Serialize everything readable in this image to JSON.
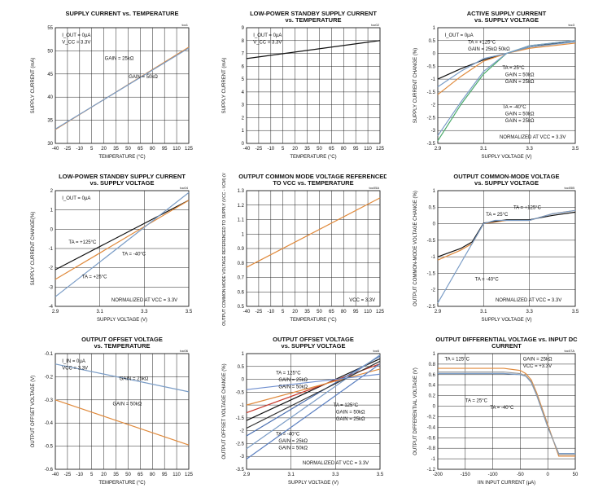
{
  "chart_data": [
    {
      "id": "toc1",
      "type": "line",
      "tag": "toc1",
      "title": [
        "SUPPLY CURRENT vs. TEMPERATURE"
      ],
      "xlabel": "TEMPERATURE (°C)",
      "ylabel": "SUPPLY CURRENT (mA)",
      "xlim": [
        -40,
        125
      ],
      "ylim": [
        30,
        55
      ],
      "xticks": [
        -40,
        -25,
        -10,
        5,
        20,
        35,
        50,
        65,
        80,
        95,
        110,
        125
      ],
      "yticks": [
        30,
        35,
        40,
        45,
        50,
        55
      ],
      "grid": true,
      "notes": [
        "I_OUT = 0µA",
        "V_CC = 3.3V",
        "GAIN = 25kΩ",
        "GAIN = 50kΩ"
      ],
      "series": [
        {
          "color": "#e08a3c",
          "x": [
            -40,
            125
          ],
          "y": [
            33.0,
            50.8
          ]
        },
        {
          "color": "#7a9cc6",
          "x": [
            -40,
            125
          ],
          "y": [
            33.1,
            50.6
          ]
        }
      ]
    },
    {
      "id": "toc2",
      "type": "line",
      "tag": "toc02",
      "title": [
        "LOW-POWER STANDBY SUPPLY CURRENT",
        "vs. TEMPERATURE"
      ],
      "xlabel": "TEMPERATURE (°C)",
      "ylabel": "SUPPLY CURRENT (mA)",
      "xlim": [
        -40,
        125
      ],
      "ylim": [
        0,
        9
      ],
      "xticks": [
        -40,
        -25,
        -10,
        5,
        20,
        35,
        50,
        65,
        80,
        95,
        110,
        125
      ],
      "yticks": [
        0,
        1,
        2,
        3,
        4,
        5,
        6,
        7,
        8,
        9
      ],
      "grid": true,
      "notes": [
        "I_OUT = 0µA",
        "V_CC = 3.3V"
      ],
      "series": [
        {
          "color": "#111111",
          "x": [
            -40,
            125
          ],
          "y": [
            6.6,
            8.0
          ]
        }
      ]
    },
    {
      "id": "toc3",
      "type": "line",
      "tag": "toc3",
      "title": [
        "ACTIVE SUPPLY CURRENT",
        "vs. SUPPLY VOLTAGE"
      ],
      "xlabel": "SUPPLY VOLTAGE (V)",
      "ylabel": "SUPPLY CURRENT CHANGE (%)",
      "xlim": [
        2.9,
        3.5
      ],
      "ylim": [
        -3.5,
        1
      ],
      "xticks": [
        2.9,
        3.1,
        3.3,
        3.5
      ],
      "yticks": [
        -3.5,
        -3,
        -2.5,
        -2,
        -1.5,
        -1,
        -0.5,
        0,
        0.5,
        1
      ],
      "grid": true,
      "notes": [
        "I_OUT = 0µA",
        "TA = +125°C",
        "GAIN = 25kΩ  50kΩ",
        "TA = 25°C",
        "GAIN = 50kΩ",
        "GAIN = 25kΩ",
        "TA = -40°C",
        "GAIN = 50kΩ",
        "GAIN = 25kΩ",
        "NORMALIZED AT VCC = 3.3V"
      ],
      "series": [
        {
          "color": "#111111",
          "x": [
            2.9,
            3.0,
            3.1,
            3.2,
            3.3,
            3.5
          ],
          "y": [
            -1.0,
            -0.6,
            -0.25,
            0.0,
            0.25,
            0.5
          ]
        },
        {
          "color": "#e08a3c",
          "x": [
            2.9,
            3.0,
            3.1,
            3.2,
            3.3,
            3.5
          ],
          "y": [
            -1.6,
            -0.9,
            -0.3,
            0.0,
            0.2,
            0.4
          ]
        },
        {
          "color": "#7a9cc6",
          "x": [
            2.9,
            3.0,
            3.1,
            3.2,
            3.3,
            3.5
          ],
          "y": [
            -1.3,
            -0.7,
            -0.2,
            0.0,
            0.25,
            0.45
          ]
        },
        {
          "color": "#4aaa6a",
          "x": [
            2.9,
            3.0,
            3.1,
            3.2,
            3.3,
            3.5
          ],
          "y": [
            -3.4,
            -2.0,
            -0.8,
            0.0,
            0.3,
            0.5
          ]
        },
        {
          "color": "#7a9cc6",
          "x": [
            2.9,
            3.0,
            3.1,
            3.2,
            3.3,
            3.5
          ],
          "y": [
            -3.2,
            -1.9,
            -0.7,
            0.0,
            0.3,
            0.5
          ]
        }
      ]
    },
    {
      "id": "toc4",
      "type": "line",
      "tag": "toc04",
      "title": [
        "LOW-POWER STANDBY SUPPLY CURRENT",
        "vs. SUPPLY VOLTAGE"
      ],
      "xlabel": "SUPPLY VOLTAGE (V)",
      "ylabel": "SUPPLY CURRENT CHANGE(%)",
      "xlim": [
        2.9,
        3.5
      ],
      "ylim": [
        -4,
        2
      ],
      "xticks": [
        2.9,
        3.1,
        3.3,
        3.5
      ],
      "yticks": [
        -4,
        -3,
        -2,
        -1,
        0,
        1,
        2
      ],
      "grid": true,
      "notes": [
        "I_OUT = 0µA",
        "TA = +125°C",
        "TA = -40°C",
        "TA = +25°C",
        "NORMALIZED AT VCC = 3.3V"
      ],
      "series": [
        {
          "color": "#111111",
          "x": [
            2.9,
            3.5
          ],
          "y": [
            -2.1,
            1.5
          ]
        },
        {
          "color": "#e08a3c",
          "x": [
            2.9,
            3.5
          ],
          "y": [
            -2.6,
            1.5
          ]
        },
        {
          "color": "#7a9cc6",
          "x": [
            2.9,
            3.5
          ],
          "y": [
            -3.5,
            1.9
          ]
        }
      ]
    },
    {
      "id": "toc5",
      "type": "line",
      "tag": "toc05A",
      "title": [
        "OUTPUT COMMON MODE VOLTAGE REFERENCED",
        "TO VCC vs. TEMPERATURE"
      ],
      "xlabel": "TEMPERATURE (°C)",
      "ylabel": "OUTPUT COMMON MODE VOLTAGE REFERENCED TO SUPPLY (VCC - VCM) (V)",
      "xlim": [
        -40,
        125
      ],
      "ylim": [
        0.5,
        1.3
      ],
      "xticks": [
        -40,
        -25,
        -10,
        5,
        20,
        35,
        50,
        65,
        80,
        95,
        110,
        125
      ],
      "yticks": [
        0.5,
        0.6,
        0.7,
        0.8,
        0.9,
        1,
        1.1,
        1.2,
        1.3
      ],
      "grid": true,
      "notes": [
        "VCC = 3.3V"
      ],
      "series": [
        {
          "color": "#e08a3c",
          "x": [
            -40,
            125
          ],
          "y": [
            0.77,
            1.25
          ]
        }
      ]
    },
    {
      "id": "toc6",
      "type": "line",
      "tag": "toc05B",
      "title": [
        "OUTPUT COMMON-MODE VOLTAGE",
        "vs. SUPPLY VOLTAGE"
      ],
      "xlabel": "SUPPLY VOLTAGE (V)",
      "ylabel": "OUTPUT COMMON-MODE VOLTAGE CHANGE (%)",
      "xlim": [
        2.9,
        3.5
      ],
      "ylim": [
        -2.5,
        1
      ],
      "xticks": [
        2.9,
        3.1,
        3.3,
        3.5
      ],
      "yticks": [
        -2.5,
        -2,
        -1.5,
        -1,
        -0.5,
        0,
        0.5,
        1
      ],
      "grid": true,
      "notes": [
        "TA = 25°C",
        "TA = +125°C",
        "TA = -40°C",
        "NORMALIZED AT VCC = 3.3V"
      ],
      "series": [
        {
          "color": "#e08a3c",
          "x": [
            2.9,
            3.0,
            3.05,
            3.1,
            3.2,
            3.3,
            3.4,
            3.5
          ],
          "y": [
            -1.1,
            -0.8,
            -0.6,
            0.0,
            0.1,
            0.1,
            0.3,
            0.4
          ]
        },
        {
          "color": "#111111",
          "x": [
            2.9,
            3.0,
            3.05,
            3.1,
            3.2,
            3.3,
            3.4,
            3.5
          ],
          "y": [
            -1.0,
            -0.75,
            -0.55,
            0.02,
            0.12,
            0.12,
            0.25,
            0.35
          ]
        },
        {
          "color": "#7a9cc6",
          "x": [
            2.9,
            3.0,
            3.1,
            3.15,
            3.2,
            3.3,
            3.4,
            3.5
          ],
          "y": [
            -2.4,
            -1.2,
            0.0,
            0.1,
            0.1,
            0.1,
            0.3,
            0.4
          ]
        }
      ]
    },
    {
      "id": "toc7",
      "type": "line",
      "tag": "toc06",
      "title": [
        "OUTPUT OFFSET VOLTAGE",
        "vs. TEMPERATURE"
      ],
      "xlabel": "TEMPERATURE (°C)",
      "ylabel": "OUTPUT OFFSET VOLTAGE (V)",
      "xlim": [
        -40,
        125
      ],
      "ylim": [
        -0.6,
        -0.1
      ],
      "xticks": [
        -40,
        -25,
        -10,
        5,
        20,
        35,
        50,
        65,
        80,
        95,
        110,
        125
      ],
      "yticks": [
        -0.6,
        -0.5,
        -0.4,
        -0.3,
        -0.2,
        -0.1
      ],
      "grid": true,
      "notes": [
        "I_IN = 0µA",
        "VCC = 3.3V",
        "GAIN = 25kΩ",
        "GAIN = 50kΩ"
      ],
      "series": [
        {
          "color": "#7a9cc6",
          "x": [
            -40,
            125
          ],
          "y": [
            -0.145,
            -0.265
          ]
        },
        {
          "color": "#e08a3c",
          "x": [
            -40,
            125
          ],
          "y": [
            -0.3,
            -0.495
          ]
        }
      ]
    },
    {
      "id": "toc8",
      "type": "line",
      "tag": "toc6",
      "title": [
        "OUTPUT OFFSET VOLTAGE",
        "vs. SUPPLY VOLTAGE"
      ],
      "xlabel": "SUPPLY VOLTAGE (V)",
      "ylabel": "OUTPUT OFFSET VOLTAGE CHANGE (%)",
      "xlim": [
        2.9,
        3.5
      ],
      "ylim": [
        -3.5,
        1
      ],
      "xticks": [
        2.9,
        3.1,
        3.3,
        3.5
      ],
      "yticks": [
        -3.5,
        -3,
        -2.5,
        -2,
        -1.5,
        -1,
        -0.5,
        0,
        0.5,
        1
      ],
      "grid": true,
      "notes": [
        "TA = 125°C",
        "GAIN = 25kΩ",
        "GAIN = 50kΩ",
        "TA = 125°C",
        "GAIN = 50kΩ",
        "GAIN = 25kΩ",
        "TA = -40°C",
        "GAIN = 25kΩ",
        "GAIN = 50kΩ",
        "NORMALIZED AT VCC = 3.3V"
      ],
      "series": [
        {
          "color": "#111111",
          "x": [
            2.9,
            3.5
          ],
          "y": [
            -1.6,
            0.8
          ]
        },
        {
          "color": "#c8382a",
          "x": [
            2.9,
            3.5
          ],
          "y": [
            -1.3,
            0.6
          ]
        },
        {
          "color": "#4a6fb0",
          "x": [
            2.9,
            3.5
          ],
          "y": [
            -2.2,
            0.9
          ]
        },
        {
          "color": "#e08a3c",
          "x": [
            2.9,
            3.5
          ],
          "y": [
            -1.0,
            0.4
          ]
        },
        {
          "color": "#7a9cc6",
          "x": [
            2.9,
            3.5
          ],
          "y": [
            -2.7,
            0.95
          ]
        },
        {
          "color": "#333333",
          "x": [
            2.9,
            3.5
          ],
          "y": [
            -1.9,
            0.7
          ]
        },
        {
          "color": "#5a7fc0",
          "x": [
            2.9,
            3.5
          ],
          "y": [
            -3.1,
            0.6
          ]
        },
        {
          "color": "#6f8fcf",
          "x": [
            2.9,
            3.5
          ],
          "y": [
            -0.4,
            0.2
          ]
        }
      ]
    },
    {
      "id": "toc9",
      "type": "line",
      "tag": "toc07A",
      "title": [
        "OUTPUT DIFFERENTIAL VOLTAGE vs. INPUT DC",
        "CURRENT"
      ],
      "xlabel": "IIN INPUT CURRENT (µA)",
      "ylabel": "OUTPUT DIFFERENTIAL VOLTAGE (V)",
      "xlim": [
        -200,
        50
      ],
      "ylim": [
        -1.2,
        1
      ],
      "xticks": [
        -200,
        -150,
        -100,
        -50,
        0,
        50
      ],
      "yticks": [
        -1.2,
        -1,
        -0.8,
        -0.6,
        -0.4,
        -0.2,
        0,
        0.2,
        0.4,
        0.6,
        0.8,
        1
      ],
      "grid": true,
      "notes": [
        "TA = 125°C",
        "GAIN = 25kΩ",
        "VCC = +3.3V",
        "TA = 25°C",
        "TA = -40°C"
      ],
      "series": [
        {
          "color": "#e08a3c",
          "x": [
            -200,
            -80,
            -50,
            -40,
            -30,
            -20,
            0,
            20,
            30,
            50
          ],
          "y": [
            0.72,
            0.72,
            0.68,
            0.62,
            0.5,
            0.25,
            -0.35,
            -0.95,
            -0.95,
            -0.95
          ]
        },
        {
          "color": "#7a9cc6",
          "x": [
            -200,
            -80,
            -50,
            -40,
            -30,
            -20,
            0,
            20,
            30,
            50
          ],
          "y": [
            0.62,
            0.62,
            0.6,
            0.57,
            0.45,
            0.2,
            -0.4,
            -0.9,
            -0.9,
            -0.9
          ]
        },
        {
          "color": "#999999",
          "x": [
            -200,
            -80,
            -50,
            -40,
            -30,
            -20,
            0,
            20,
            30,
            50
          ],
          "y": [
            0.65,
            0.65,
            0.62,
            0.58,
            0.47,
            0.22,
            -0.38,
            -0.92,
            -0.92,
            -0.92
          ]
        }
      ]
    }
  ]
}
